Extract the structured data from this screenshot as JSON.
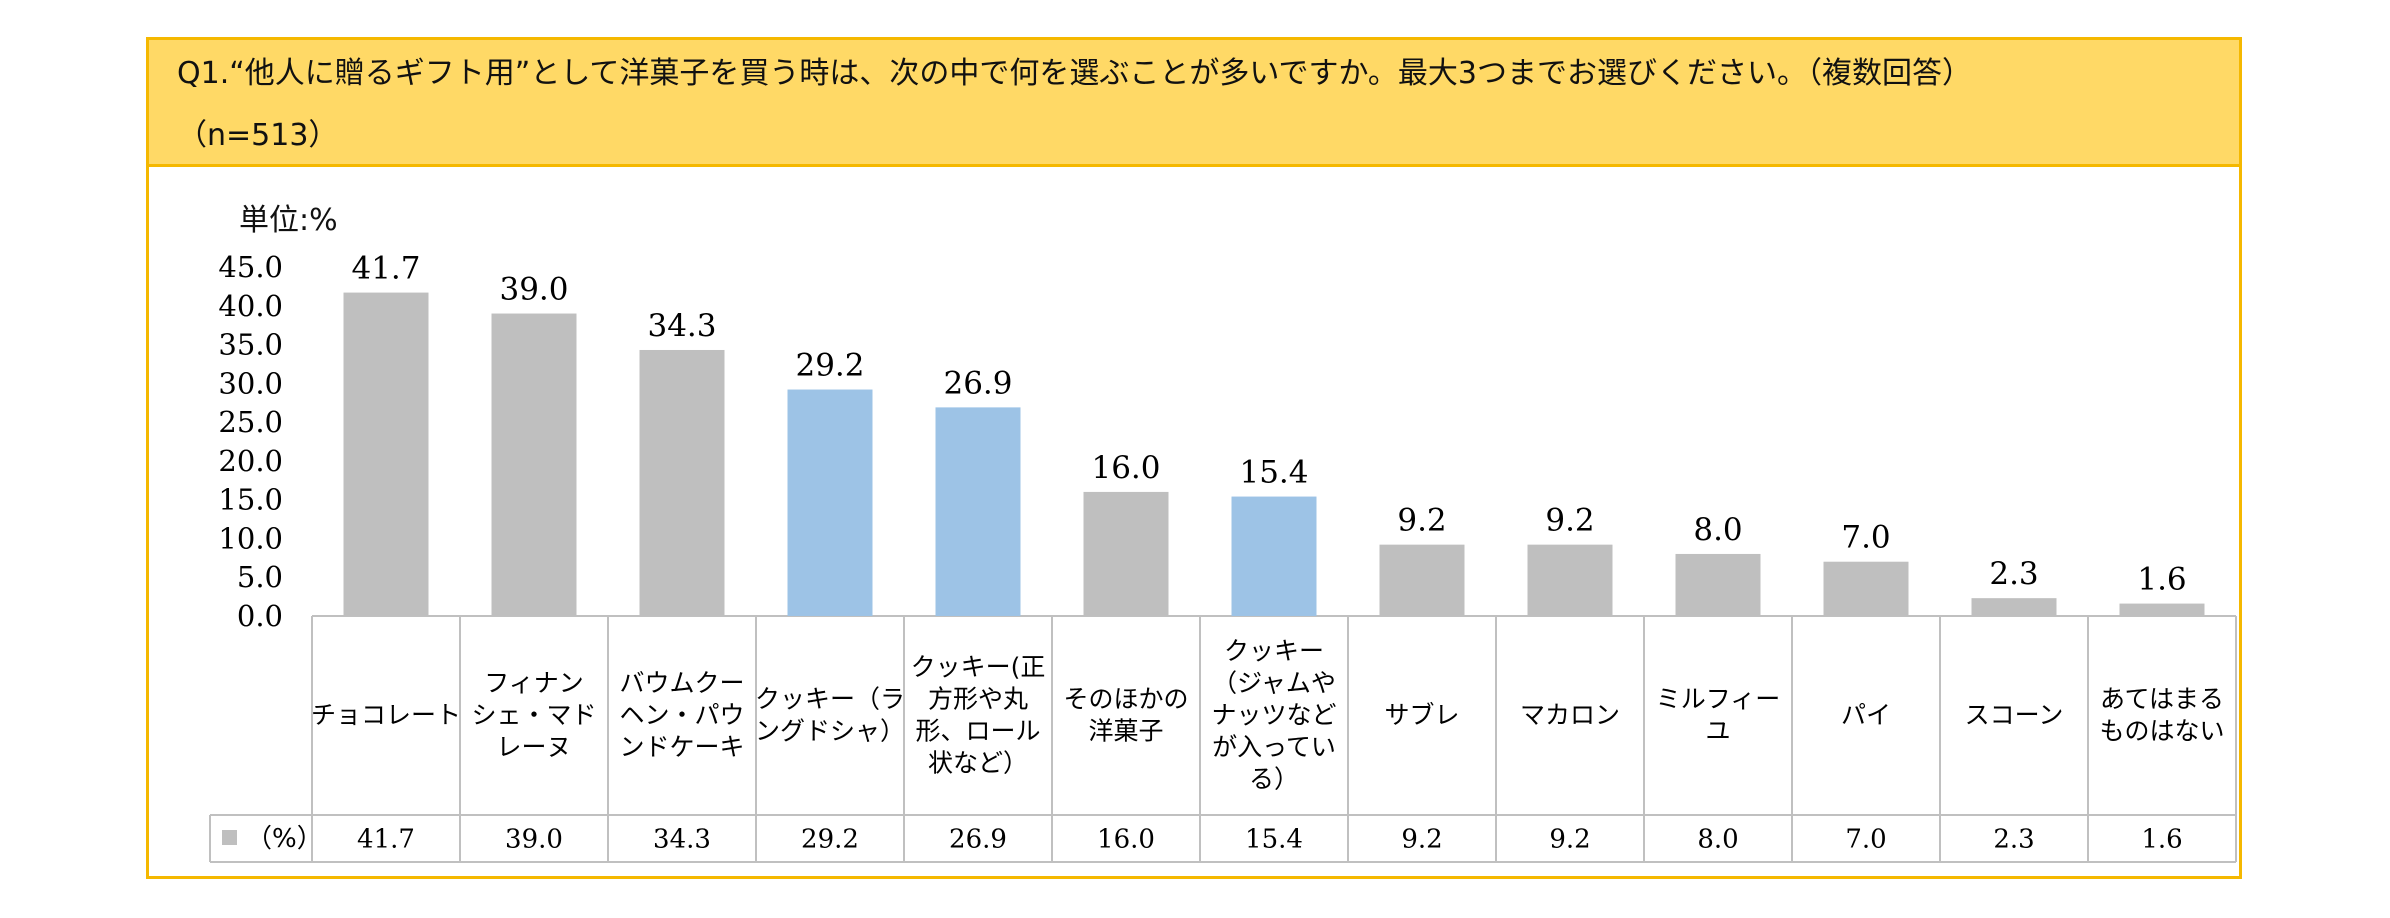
{
  "header": {
    "question": "Q1.“他人に贈るギフト用”として洋菓子を買う時は、次の中で何を選ぶことが多いですか。最大3つまでお選びください。（複数回答）",
    "sample": "（n=513）"
  },
  "colors": {
    "header_bg": "#ffd966",
    "border": "#f5b800",
    "bar_gray": "#bfbfbf",
    "bar_blue": "#9dc3e6",
    "grid_line": "#c0c0c0"
  },
  "chart_data": {
    "type": "bar",
    "unit_label": "単位:%",
    "categories": [
      "チョコレート",
      "フィナンシェ・マドレーヌ",
      "バウムクーヘン・パウンドケーキ",
      "クッキー（ラングドシャ）",
      "クッキー(正方形や丸形、ロール状など）",
      "そのほかの洋菓子",
      "クッキー（ジャムやナッツなどが入っている）",
      "サブレ",
      "マカロン",
      "ミルフィーユ",
      "パイ",
      "スコーン",
      "あてはまるものはない"
    ],
    "category_lines": [
      [
        "チョコレート"
      ],
      [
        "フィナン",
        "シェ・マド",
        "レーヌ"
      ],
      [
        "バウムクー",
        "ヘン・パウ",
        "ンドケーキ"
      ],
      [
        "クッキー（ラ",
        "ングドシャ）"
      ],
      [
        "クッキー(正",
        "方形や丸",
        "形、ロール",
        "状など）"
      ],
      [
        "そのほかの",
        "洋菓子"
      ],
      [
        "クッキー",
        "（ジャムや",
        "ナッツなど",
        "が入ってい",
        "る）"
      ],
      [
        "サブレ"
      ],
      [
        "マカロン"
      ],
      [
        "ミルフィー",
        "ユ"
      ],
      [
        "パイ"
      ],
      [
        "スコーン"
      ],
      [
        "あてはまる",
        "ものはない"
      ]
    ],
    "series": [
      {
        "name": "（%）",
        "values": [
          41.7,
          39.0,
          34.3,
          29.2,
          26.9,
          16.0,
          15.4,
          9.2,
          9.2,
          8.0,
          7.0,
          2.3,
          1.6
        ],
        "labels": [
          "41.7",
          "39.0",
          "34.3",
          "29.2",
          "26.9",
          "16.0",
          "15.4",
          "9.2",
          "9.2",
          "8.0",
          "7.0",
          "2.3",
          "1.6"
        ]
      }
    ],
    "highlight": [
      false,
      false,
      false,
      true,
      true,
      false,
      true,
      false,
      false,
      false,
      false,
      false,
      false
    ],
    "y_ticks": [
      "0.0",
      "5.0",
      "10.0",
      "15.0",
      "20.0",
      "25.0",
      "30.0",
      "35.0",
      "40.0",
      "45.0"
    ],
    "ylim": [
      0,
      45
    ],
    "grid": false,
    "data_table": true
  }
}
